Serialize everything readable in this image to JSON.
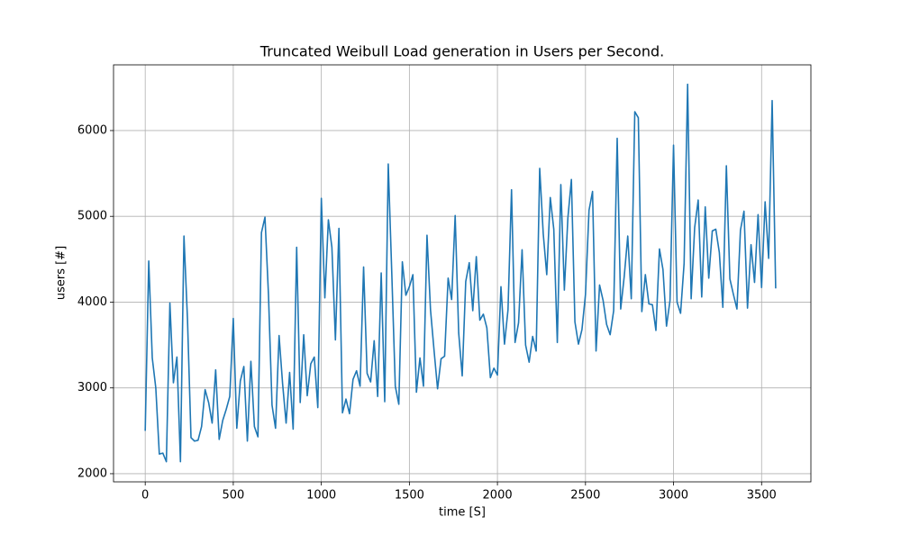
{
  "chart_data": {
    "type": "line",
    "title": "Truncated Weibull Load generation in Users per Second.",
    "x_label": "time [S]",
    "y_label": "users [#]",
    "color": "#1f77b4",
    "grid": true,
    "xlim": [
      -180,
      3780
    ],
    "ylim": [
      1905,
      6766
    ],
    "xticks": [
      0,
      500,
      1000,
      1500,
      2000,
      2500,
      3000,
      3500
    ],
    "yticks": [
      2000,
      3000,
      4000,
      5000,
      6000
    ],
    "x": [
      0,
      20,
      40,
      60,
      80,
      100,
      120,
      140,
      160,
      180,
      200,
      220,
      240,
      260,
      280,
      300,
      320,
      340,
      360,
      380,
      400,
      420,
      440,
      460,
      480,
      500,
      520,
      540,
      560,
      580,
      600,
      620,
      640,
      660,
      680,
      700,
      720,
      740,
      760,
      780,
      800,
      820,
      840,
      860,
      880,
      900,
      920,
      940,
      960,
      980,
      1000,
      1020,
      1040,
      1060,
      1080,
      1100,
      1120,
      1140,
      1160,
      1180,
      1200,
      1220,
      1240,
      1260,
      1280,
      1300,
      1320,
      1340,
      1360,
      1380,
      1400,
      1420,
      1440,
      1460,
      1480,
      1500,
      1520,
      1540,
      1560,
      1580,
      1600,
      1620,
      1640,
      1660,
      1680,
      1700,
      1720,
      1740,
      1760,
      1780,
      1800,
      1820,
      1840,
      1860,
      1880,
      1900,
      1920,
      1940,
      1960,
      1980,
      2000,
      2020,
      2040,
      2060,
      2080,
      2100,
      2120,
      2140,
      2160,
      2180,
      2200,
      2220,
      2240,
      2260,
      2280,
      2300,
      2320,
      2340,
      2360,
      2380,
      2400,
      2420,
      2440,
      2460,
      2480,
      2500,
      2520,
      2540,
      2560,
      2580,
      2600,
      2620,
      2640,
      2660,
      2680,
      2700,
      2720,
      2740,
      2760,
      2780,
      2800,
      2820,
      2840,
      2860,
      2880,
      2900,
      2920,
      2940,
      2960,
      2980,
      3000,
      3020,
      3040,
      3060,
      3080,
      3100,
      3120,
      3140,
      3160,
      3180,
      3200,
      3220,
      3240,
      3260,
      3280,
      3300,
      3320,
      3340,
      3360,
      3380,
      3400,
      3420,
      3440,
      3460,
      3480,
      3500,
      3520,
      3540,
      3560,
      3580
    ],
    "values": [
      2500,
      4480,
      3350,
      3000,
      2230,
      2240,
      2140,
      3990,
      3060,
      3360,
      2140,
      4770,
      3800,
      2420,
      2380,
      2390,
      2550,
      2980,
      2830,
      2590,
      3210,
      2400,
      2620,
      2750,
      2900,
      3810,
      2530,
      3080,
      3250,
      2380,
      3310,
      2550,
      2430,
      4810,
      4990,
      4080,
      2800,
      2530,
      3610,
      3050,
      2590,
      3180,
      2520,
      4640,
      2830,
      3620,
      2910,
      3280,
      3360,
      2770,
      5210,
      4050,
      4960,
      4640,
      3560,
      4860,
      2710,
      2870,
      2700,
      3100,
      3200,
      3020,
      4410,
      3170,
      3070,
      3550,
      2900,
      4340,
      2840,
      5610,
      4340,
      3020,
      2810,
      4470,
      4080,
      4180,
      4320,
      2950,
      3350,
      3020,
      4780,
      3910,
      3440,
      2990,
      3340,
      3370,
      4280,
      4030,
      5010,
      3640,
      3140,
      4240,
      4460,
      3900,
      4530,
      3790,
      3860,
      3700,
      3120,
      3230,
      3150,
      4180,
      3510,
      3910,
      5310,
      3530,
      3760,
      4610,
      3500,
      3300,
      3600,
      3430,
      5560,
      4800,
      4320,
      5220,
      4850,
      3530,
      5370,
      4140,
      4980,
      5430,
      3770,
      3510,
      3680,
      4090,
      5070,
      5290,
      3430,
      4200,
      4020,
      3740,
      3620,
      3900,
      5910,
      3920,
      4300,
      4770,
      4040,
      6220,
      6150,
      3890,
      4320,
      3980,
      3970,
      3670,
      4620,
      4380,
      3720,
      4020,
      5830,
      4000,
      3870,
      4450,
      6540,
      4040,
      4870,
      5190,
      4060,
      5110,
      4280,
      4830,
      4850,
      4580,
      3940,
      5590,
      4270,
      4090,
      3920,
      4840,
      5060,
      3930,
      4670,
      4230,
      5020,
      4170,
      5170,
      4510,
      6350,
      4160
    ]
  }
}
